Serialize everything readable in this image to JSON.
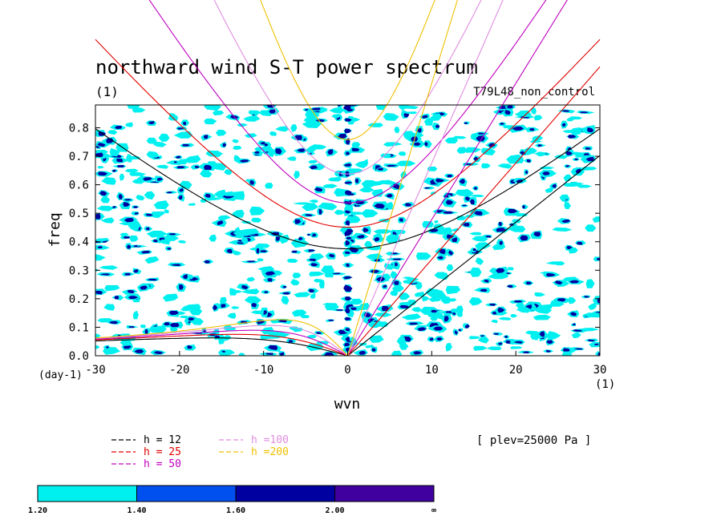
{
  "chart_data": {
    "type": "heatmap",
    "title": "northward wind S-T power spectrum",
    "subtitle_left": "(1)",
    "subtitle_right": "T79L48_non_control",
    "xlabel": "wvn",
    "ylabel": "freq",
    "x_unit": "(1)",
    "y_unit": "(day-1)",
    "xlim": [
      -30,
      30
    ],
    "ylim": [
      0,
      0.88
    ],
    "x_ticks": [
      -30,
      -20,
      -10,
      0,
      10,
      20,
      30
    ],
    "x_tick_labels": [
      "-30",
      "-20",
      "-10",
      "0",
      "10",
      "20",
      "30"
    ],
    "y_ticks": [
      0,
      0.1,
      0.2,
      0.3,
      0.4,
      0.5,
      0.6,
      0.7,
      0.8
    ],
    "y_tick_labels": [
      "0.0",
      "0.1",
      "0.2",
      "0.3",
      "0.4",
      "0.5",
      "0.6",
      "0.7",
      "0.8"
    ],
    "annotation": "[ plev=25000 Pa ]",
    "dispersion_curves": [
      {
        "label": "h = 12",
        "h": 12,
        "color": "#000000"
      },
      {
        "label": "h = 25",
        "h": 25,
        "color": "#e00000"
      },
      {
        "label": "h = 50",
        "h": 50,
        "color": "#c000c0"
      },
      {
        "label": "h =100",
        "h": 100,
        "color": "#e08ce0"
      },
      {
        "label": "h =200",
        "h": 200,
        "color": "#f0c000"
      }
    ],
    "color_scale": {
      "levels": [
        "1.20",
        "1.40",
        "1.60",
        "2.00",
        "∞"
      ],
      "colors": [
        "#00f0f0",
        "#0050f0",
        "#0000a0",
        "#4000a0"
      ]
    }
  }
}
